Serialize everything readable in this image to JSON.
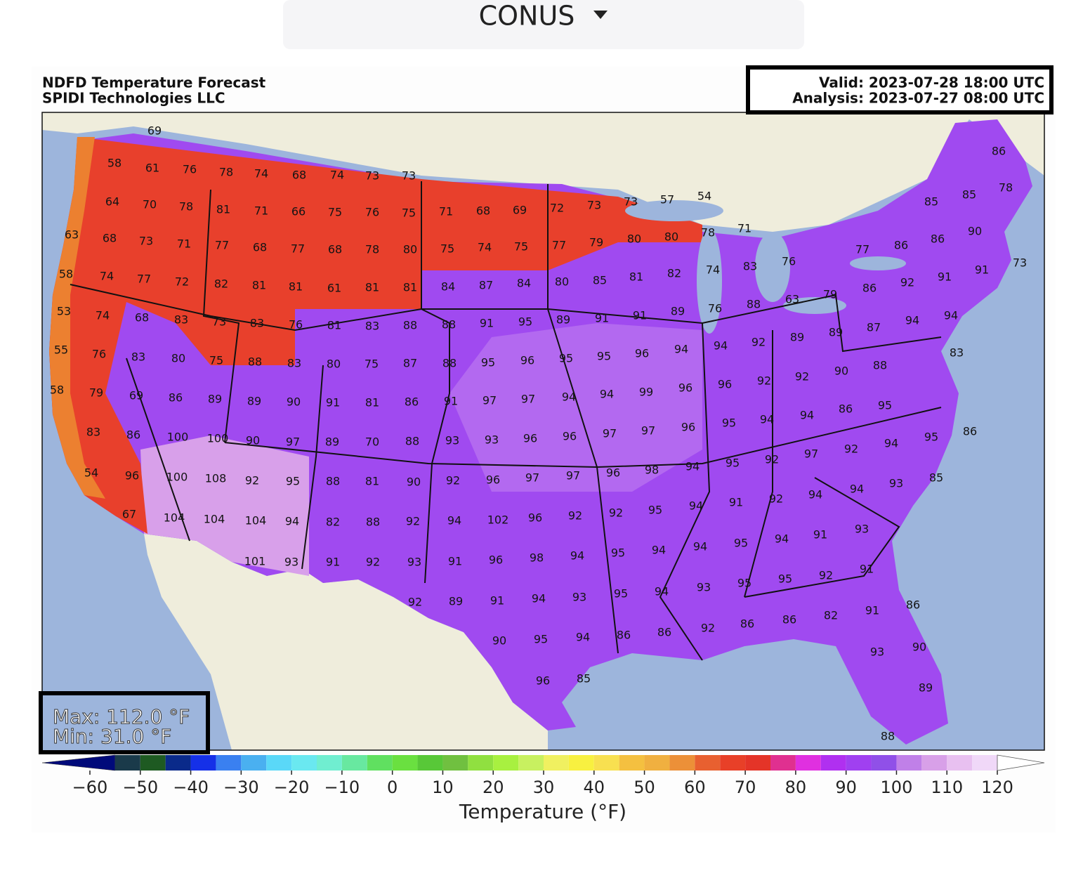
{
  "dropdown": {
    "label": "CONUS"
  },
  "map": {
    "title": [
      "NDFD Temperature Forecast",
      "SPIDI Technologies LLC"
    ],
    "valid": "Valid: 2023-07-28 18:00 UTC",
    "analysis": "Analysis: 2023-07-27 08:00 UTC",
    "max_label": "Max: 112.0 °F",
    "min_label": "Min: 31.0 °F",
    "temperature_labels": [
      69,
      58,
      61,
      76,
      78,
      74,
      68,
      74,
      73,
      73,
      64,
      70,
      78,
      81,
      71,
      66,
      75,
      76,
      75,
      71,
      68,
      69,
      72,
      73,
      73,
      57,
      54,
      86,
      85,
      85,
      78,
      63,
      68,
      73,
      71,
      77,
      68,
      77,
      68,
      78,
      80,
      75,
      74,
      75,
      77,
      79,
      80,
      80,
      78,
      71,
      90,
      86,
      86,
      77,
      58,
      74,
      77,
      72,
      82,
      81,
      81,
      61,
      81,
      81,
      84,
      87,
      84,
      80,
      85,
      81,
      82,
      74,
      83,
      76,
      86,
      92,
      91,
      91,
      73,
      53,
      74,
      68,
      83,
      73,
      83,
      76,
      81,
      83,
      88,
      88,
      91,
      95,
      89,
      91,
      91,
      89,
      76,
      88,
      63,
      79,
      94,
      92,
      89,
      89,
      87,
      94,
      94,
      55,
      76,
      83,
      80,
      75,
      88,
      83,
      80,
      75,
      87,
      88,
      95,
      96,
      95,
      95,
      96,
      94,
      83,
      88,
      90,
      92,
      92,
      96,
      96,
      58,
      79,
      69,
      86,
      89,
      89,
      90,
      91,
      81,
      86,
      91,
      97,
      97,
      94,
      94,
      99,
      95,
      86,
      94,
      94,
      95,
      96,
      83,
      86,
      100,
      100,
      90,
      97,
      89,
      70,
      88,
      93,
      93,
      96,
      96,
      97,
      97,
      86,
      95,
      94,
      92,
      97,
      92,
      95,
      94,
      54,
      96,
      100,
      108,
      92,
      95,
      88,
      81,
      90,
      92,
      96,
      97,
      97,
      96,
      98,
      85,
      93,
      94,
      94,
      92,
      91,
      94,
      67,
      104,
      104,
      104,
      94,
      82,
      88,
      92,
      94,
      102,
      96,
      92,
      92,
      95,
      93,
      91,
      94,
      95,
      94,
      101,
      93,
      91,
      92,
      93,
      91,
      96,
      98,
      94,
      95,
      94,
      92,
      91,
      95,
      95,
      93,
      94,
      95,
      93,
      94,
      91,
      89,
      92,
      86,
      91,
      82,
      86,
      86,
      92,
      86,
      86,
      94,
      95,
      90,
      90,
      93,
      96,
      85,
      89,
      88
    ]
  },
  "colorbar": {
    "label": "Temperature (°F)",
    "ticks": [
      {
        "value": -60,
        "label": "−60"
      },
      {
        "value": -50,
        "label": "−50"
      },
      {
        "value": -40,
        "label": "−40"
      },
      {
        "value": -30,
        "label": "−30"
      },
      {
        "value": -20,
        "label": "−20"
      },
      {
        "value": -10,
        "label": "−10"
      },
      0,
      10,
      20,
      30,
      40,
      50,
      60,
      70,
      80,
      90,
      100,
      110,
      120
    ],
    "levels": [
      -55,
      -50,
      -45,
      -40,
      -35,
      -30,
      -25,
      -20,
      -15,
      -10,
      -5,
      0,
      5,
      10,
      15,
      20,
      25,
      30,
      35,
      40,
      45,
      50,
      55,
      60,
      65,
      70,
      75,
      80,
      85,
      90,
      95,
      100,
      105,
      110,
      115,
      120
    ],
    "colors": [
      "#1a3a4a",
      "#1e5a22",
      "#0a2a8a",
      "#1530e8",
      "#3a80f0",
      "#4ab0f0",
      "#5ad8f8",
      "#6ae8f0",
      "#70eed0",
      "#68e8a0",
      "#60e060",
      "#6ae040",
      "#58c838",
      "#70c040",
      "#90e040",
      "#a8f040",
      "#c8f060",
      "#f0f060",
      "#f8f040",
      "#f8e050",
      "#f4c040",
      "#f0b040",
      "#ec9038",
      "#e86030",
      "#e84028",
      "#e43428",
      "#e03090",
      "#e030e0",
      "#b030f0",
      "#a040f0",
      "#9050e8",
      "#c080e8",
      "#d8a0e8",
      "#e8c0f0",
      "#f0d8f8"
    ],
    "under_color": "#000a7a",
    "over_color": "#ffffff"
  }
}
